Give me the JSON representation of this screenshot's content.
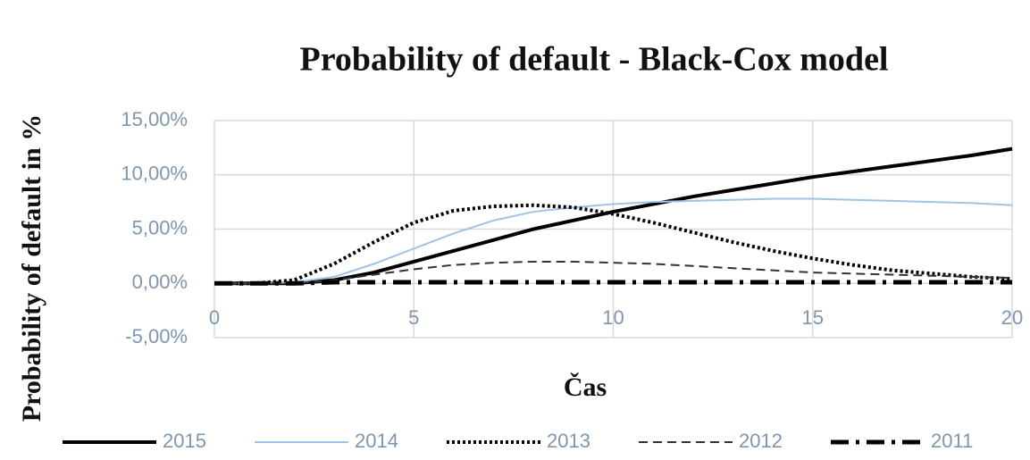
{
  "chart_data": {
    "type": "line",
    "title": "Probability  of default - Black-Cox model",
    "x_label": "Čas",
    "y_label": "Probability  of default  in %",
    "x": [
      0,
      1,
      2,
      3,
      4,
      5,
      6,
      7,
      8,
      9,
      10,
      11,
      12,
      13,
      14,
      15,
      16,
      17,
      18,
      19,
      20
    ],
    "series": [
      {
        "name": "2015",
        "color": "#000000",
        "dash": "solid",
        "width": 4,
        "values": [
          0,
          0,
          0,
          0.3,
          1,
          2,
          3,
          4,
          5,
          5.8,
          6.6,
          7.3,
          8,
          8.6,
          9.2,
          9.8,
          10.3,
          10.8,
          11.3,
          11.8,
          12.4
        ]
      },
      {
        "name": "2014",
        "color": "#9dc3e6",
        "dash": "solid",
        "width": 2,
        "values": [
          0,
          0,
          0.1,
          0.6,
          1.8,
          3.2,
          4.6,
          5.8,
          6.6,
          7,
          7.3,
          7.5,
          7.6,
          7.7,
          7.8,
          7.8,
          7.7,
          7.6,
          7.5,
          7.4,
          7.2
        ]
      },
      {
        "name": "2013",
        "color": "#000000",
        "dash": "dotted",
        "width": 4,
        "values": [
          0,
          0,
          0.3,
          1.8,
          3.8,
          5.6,
          6.7,
          7.1,
          7.2,
          7,
          6.4,
          5.6,
          4.7,
          3.8,
          3,
          2.3,
          1.7,
          1.2,
          0.9,
          0.6,
          0.4
        ]
      },
      {
        "name": "2012",
        "color": "#333333",
        "dash": "dashed",
        "width": 2,
        "values": [
          0,
          0,
          0,
          0.3,
          0.8,
          1.3,
          1.7,
          1.9,
          2,
          2,
          1.9,
          1.8,
          1.6,
          1.4,
          1.2,
          1,
          0.9,
          0.8,
          0.7,
          0.6,
          0.5
        ]
      },
      {
        "name": "2011",
        "color": "#000000",
        "dash": "dashdot",
        "width": 5,
        "values": [
          0,
          0,
          0,
          0.1,
          0.1,
          0.1,
          0.1,
          0.1,
          0.1,
          0.1,
          0.1,
          0.1,
          0.1,
          0.1,
          0.1,
          0.1,
          0.1,
          0.1,
          0.1,
          0.1,
          0.1
        ]
      }
    ],
    "xlim": [
      0,
      20
    ],
    "xticks": [
      0,
      5,
      10,
      15,
      20
    ],
    "ylim": [
      -5,
      15
    ],
    "yticks": [
      {
        "value": -5,
        "label": "-5,00%"
      },
      {
        "value": 0,
        "label": "0,00%"
      },
      {
        "value": 5,
        "label": "5,00%"
      },
      {
        "value": 10,
        "label": "10,00%"
      },
      {
        "value": 15,
        "label": "15,00%"
      }
    ],
    "grid": true,
    "legend": "bottom"
  }
}
